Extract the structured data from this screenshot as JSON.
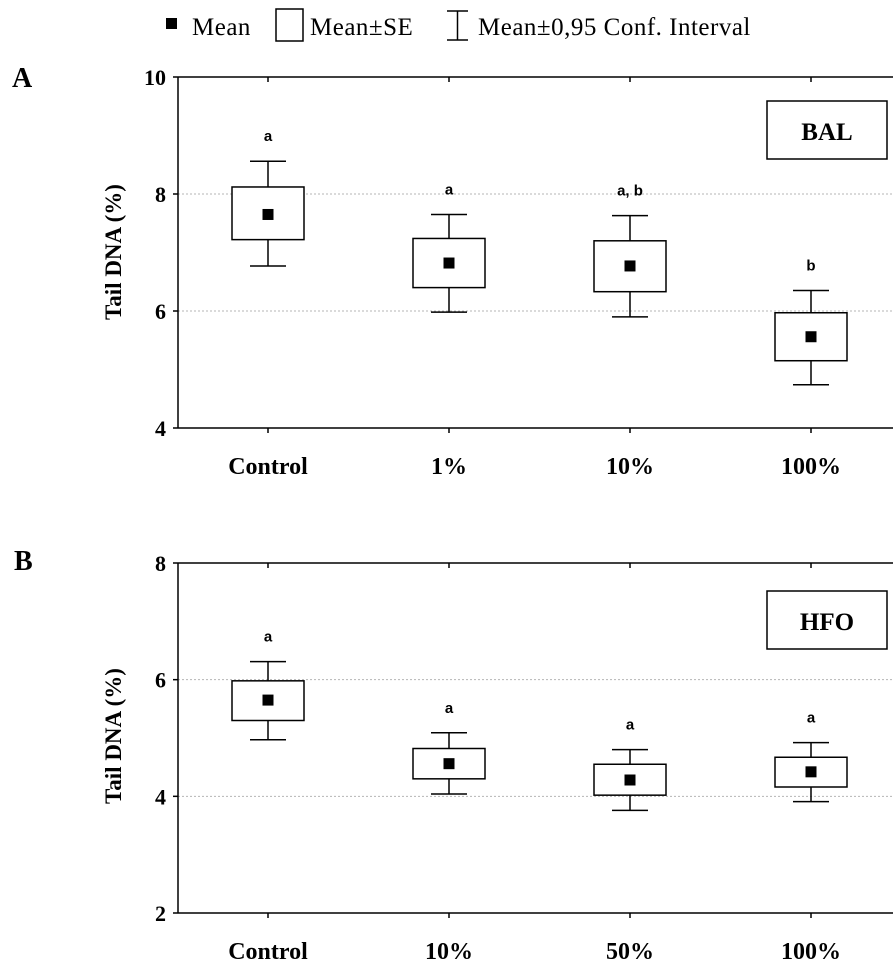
{
  "legend": {
    "mean": "Mean",
    "se": "Mean±SE",
    "ci": "Mean±0,95 Conf. Interval"
  },
  "chart_data": [
    {
      "type": "box",
      "panel": "A",
      "badge": "BAL",
      "ylabel": "Tail DNA (%)",
      "ylim": [
        4,
        10
      ],
      "yticks": [
        4,
        6,
        8,
        10
      ],
      "grid": "dotted horizontal at 6 and 8",
      "categories": [
        "Control",
        "1%",
        "10%",
        "100%"
      ],
      "series": [
        {
          "category": "Control",
          "mean": 7.65,
          "se_low": 7.22,
          "se_high": 8.12,
          "ci_low": 6.77,
          "ci_high": 8.56,
          "group": "a"
        },
        {
          "category": "1%",
          "mean": 6.82,
          "se_low": 6.4,
          "se_high": 7.24,
          "ci_low": 5.98,
          "ci_high": 7.65,
          "group": "a"
        },
        {
          "category": "10%",
          "mean": 6.77,
          "se_low": 6.33,
          "se_high": 7.2,
          "ci_low": 5.9,
          "ci_high": 7.63,
          "group": "a, b"
        },
        {
          "category": "100%",
          "mean": 5.56,
          "se_low": 5.15,
          "se_high": 5.97,
          "ci_low": 4.74,
          "ci_high": 6.35,
          "group": "b"
        }
      ]
    },
    {
      "type": "box",
      "panel": "B",
      "badge": "HFO",
      "ylabel": "Tail DNA (%)",
      "ylim": [
        2,
        8
      ],
      "yticks": [
        2,
        4,
        6,
        8
      ],
      "grid": "dotted horizontal at 4 and 6",
      "categories": [
        "Control",
        "10%",
        "50%",
        "100%"
      ],
      "series": [
        {
          "category": "Control",
          "mean": 5.65,
          "se_low": 5.3,
          "se_high": 5.98,
          "ci_low": 4.97,
          "ci_high": 6.31,
          "group": "a"
        },
        {
          "category": "10%",
          "mean": 4.56,
          "se_low": 4.3,
          "se_high": 4.82,
          "ci_low": 4.04,
          "ci_high": 5.09,
          "group": "a"
        },
        {
          "category": "50%",
          "mean": 4.28,
          "se_low": 4.02,
          "se_high": 4.55,
          "ci_low": 3.76,
          "ci_high": 4.8,
          "group": "a"
        },
        {
          "category": "100%",
          "mean": 4.42,
          "se_low": 4.16,
          "se_high": 4.67,
          "ci_low": 3.91,
          "ci_high": 4.92,
          "group": "a"
        }
      ]
    }
  ]
}
